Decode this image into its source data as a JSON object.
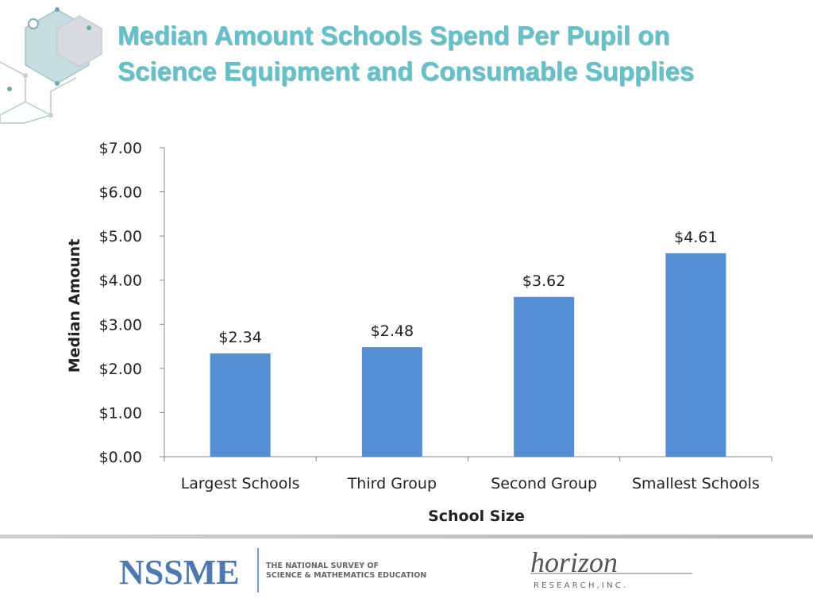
{
  "chart_data": {
    "type": "bar",
    "title": "Median Amount Schools Spend Per Pupil on Science Equipment and Consumable Supplies",
    "x_label": "School Size",
    "y_label": "Median Amount",
    "categories": [
      "Largest Schools",
      "Third Group",
      "Second Group",
      "Smallest Schools"
    ],
    "values": [
      2.34,
      2.48,
      3.62,
      4.61
    ],
    "value_labels": [
      "$2.34",
      "$2.48",
      "$3.62",
      "$4.61"
    ],
    "color": "#558ed5",
    "ylim": [
      0,
      7
    ],
    "yticks": [
      {
        "value": 0,
        "label": "$0.00"
      },
      {
        "value": 1,
        "label": "$1.00"
      },
      {
        "value": 2,
        "label": "$2.00"
      },
      {
        "value": 3,
        "label": "$3.00"
      },
      {
        "value": 4,
        "label": "$4.00"
      },
      {
        "value": 5,
        "label": "$5.00"
      },
      {
        "value": 6,
        "label": "$6.00"
      },
      {
        "value": 7,
        "label": "$7.00"
      }
    ],
    "grid": false
  },
  "footer": {
    "logo": "NSSME",
    "logo_line1": "THE NATIONAL SURVEY OF",
    "logo_line2": "SCIENCE & MATHEMATICS EDUCATION",
    "partner": "horizon",
    "partner_sub": "R E S E A R C H ,  I N C ."
  }
}
